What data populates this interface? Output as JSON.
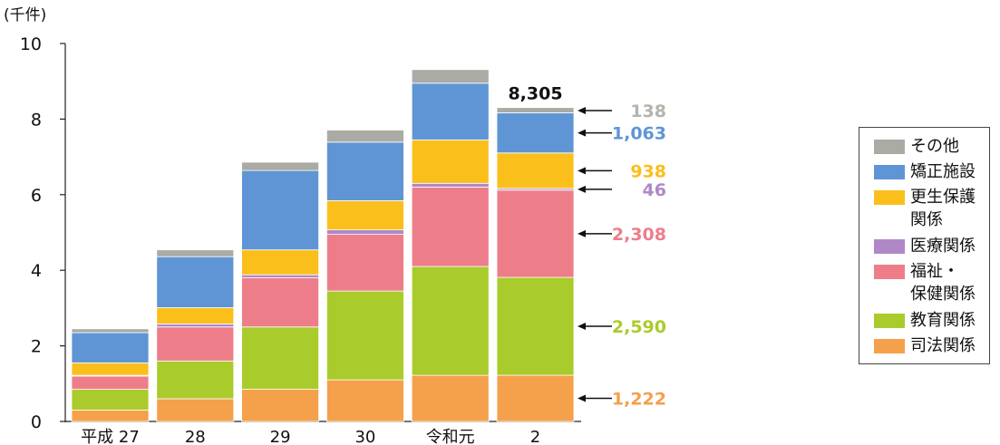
{
  "chart_data": {
    "type": "bar",
    "stacked": true,
    "unit_label": "(千件)",
    "ylim": [
      0,
      10
    ],
    "yticks": [
      "0",
      "2",
      "4",
      "6",
      "8",
      "10"
    ],
    "categories": [
      "平成 27",
      "28",
      "29",
      "30",
      "令和元",
      "2"
    ],
    "series": [
      {
        "name": "司法関係",
        "color": "#f5a04a",
        "values": [
          0.3,
          0.6,
          0.85,
          1.1,
          1.22,
          1.222
        ]
      },
      {
        "name": "教育関係",
        "color": "#aacb2c",
        "values": [
          0.55,
          1.0,
          1.65,
          2.35,
          2.88,
          2.59
        ]
      },
      {
        "name": "福祉・\n保健関係",
        "color": "#ee7d8a",
        "values": [
          0.35,
          0.9,
          1.3,
          1.5,
          2.1,
          2.308
        ]
      },
      {
        "name": "医療関係",
        "color": "#b088c8",
        "values": [
          0.02,
          0.08,
          0.08,
          0.12,
          0.1,
          0.046
        ]
      },
      {
        "name": "更生保護\n関係",
        "color": "#fbbf1c",
        "values": [
          0.33,
          0.43,
          0.66,
          0.77,
          1.15,
          0.938
        ]
      },
      {
        "name": "矯正施設",
        "color": "#5f95d4",
        "values": [
          0.8,
          1.35,
          2.1,
          1.55,
          1.5,
          1.063
        ]
      },
      {
        "name": "その他",
        "color": "#a9aba4",
        "values": [
          0.1,
          0.18,
          0.22,
          0.32,
          0.36,
          0.138
        ]
      }
    ],
    "total_label": "8,305",
    "annotations": [
      {
        "series": "その他",
        "text": "138"
      },
      {
        "series": "矯正施設",
        "text": "1,063"
      },
      {
        "series": "更生保護\n関係",
        "text": "938"
      },
      {
        "series": "医療関係",
        "text": "46"
      },
      {
        "series": "福祉・\n保健関係",
        "text": "2,308"
      },
      {
        "series": "教育関係",
        "text": "2,590"
      },
      {
        "series": "司法関係",
        "text": "1,222"
      }
    ]
  },
  "legend": {
    "items": [
      {
        "label": "その他",
        "color": "#a9aba4"
      },
      {
        "label": "矯正施設",
        "color": "#5f95d4"
      },
      {
        "label": "更生保護\n関係",
        "color": "#fbbf1c"
      },
      {
        "label": "医療関係",
        "color": "#b088c8"
      },
      {
        "label": "福祉・\n保健関係",
        "color": "#ee7d8a"
      },
      {
        "label": "教育関係",
        "color": "#aacb2c"
      },
      {
        "label": "司法関係",
        "color": "#f5a04a"
      }
    ]
  }
}
